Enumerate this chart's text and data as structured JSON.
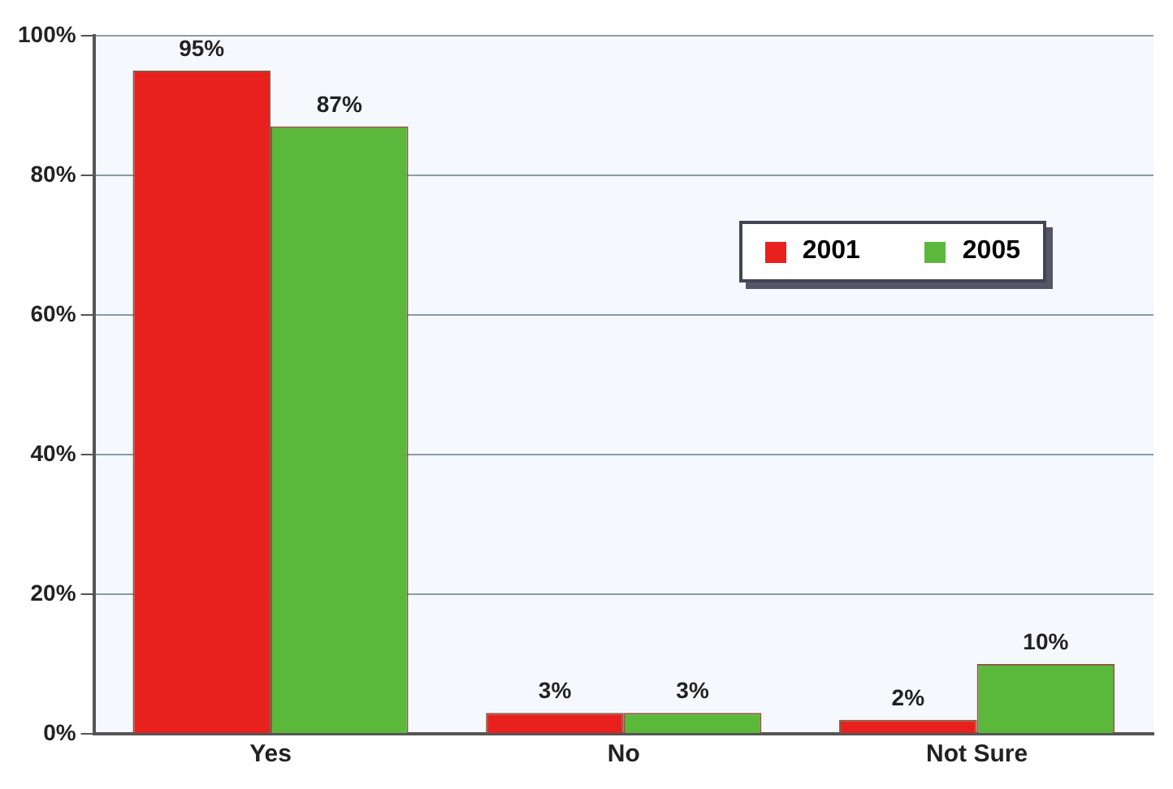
{
  "chart_data": {
    "type": "bar",
    "categories": [
      "Yes",
      "No",
      "Not Sure"
    ],
    "series": [
      {
        "name": "2001",
        "color": "#e8201e",
        "values": [
          95,
          3,
          2
        ],
        "value_labels": [
          "95%",
          "3%",
          "2%"
        ]
      },
      {
        "name": "2005",
        "color": "#5cb83a",
        "values": [
          87,
          3,
          10
        ],
        "value_labels": [
          "87%",
          "3%",
          "10%"
        ]
      }
    ],
    "ylim": [
      0,
      100
    ],
    "yticks": [
      {
        "value": 0,
        "label": "0%"
      },
      {
        "value": 20,
        "label": "20%"
      },
      {
        "value": 40,
        "label": "40%"
      },
      {
        "value": 60,
        "label": "60%"
      },
      {
        "value": 80,
        "label": "80%"
      },
      {
        "value": 100,
        "label": "100%"
      }
    ],
    "grid": "y",
    "legend": "right"
  }
}
